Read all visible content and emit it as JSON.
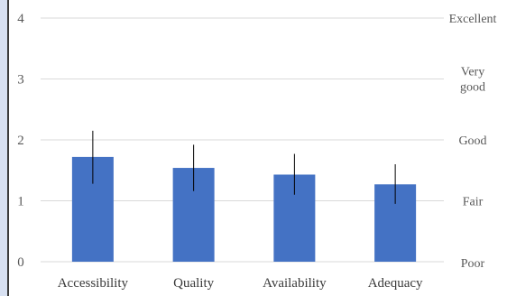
{
  "colors": {
    "bar": "#4472c4",
    "grid": "#d9d9d9",
    "text": "#595959",
    "error": "#000000",
    "left_panel": "#d8e1f2"
  },
  "chart_data": {
    "type": "bar",
    "categories": [
      "Accessibility",
      "Quality",
      "Availability",
      "Adequacy"
    ],
    "values": [
      1.72,
      1.54,
      1.43,
      1.27
    ],
    "error_low": [
      1.28,
      1.16,
      1.1,
      0.95
    ],
    "error_high": [
      2.15,
      1.92,
      1.77,
      1.6
    ],
    "ylim": [
      0,
      4
    ],
    "y_ticks": [
      "0",
      "1",
      "2",
      "3",
      "4"
    ],
    "grid": true,
    "secondary_axis_labels": [
      {
        "value": 0,
        "lines": [
          "Poor"
        ]
      },
      {
        "value": 1,
        "lines": [
          "Fair"
        ]
      },
      {
        "value": 2,
        "lines": [
          "Good"
        ]
      },
      {
        "value": 3,
        "lines": [
          "Very",
          "good"
        ]
      },
      {
        "value": 4,
        "lines": [
          "Excellent"
        ]
      }
    ]
  }
}
